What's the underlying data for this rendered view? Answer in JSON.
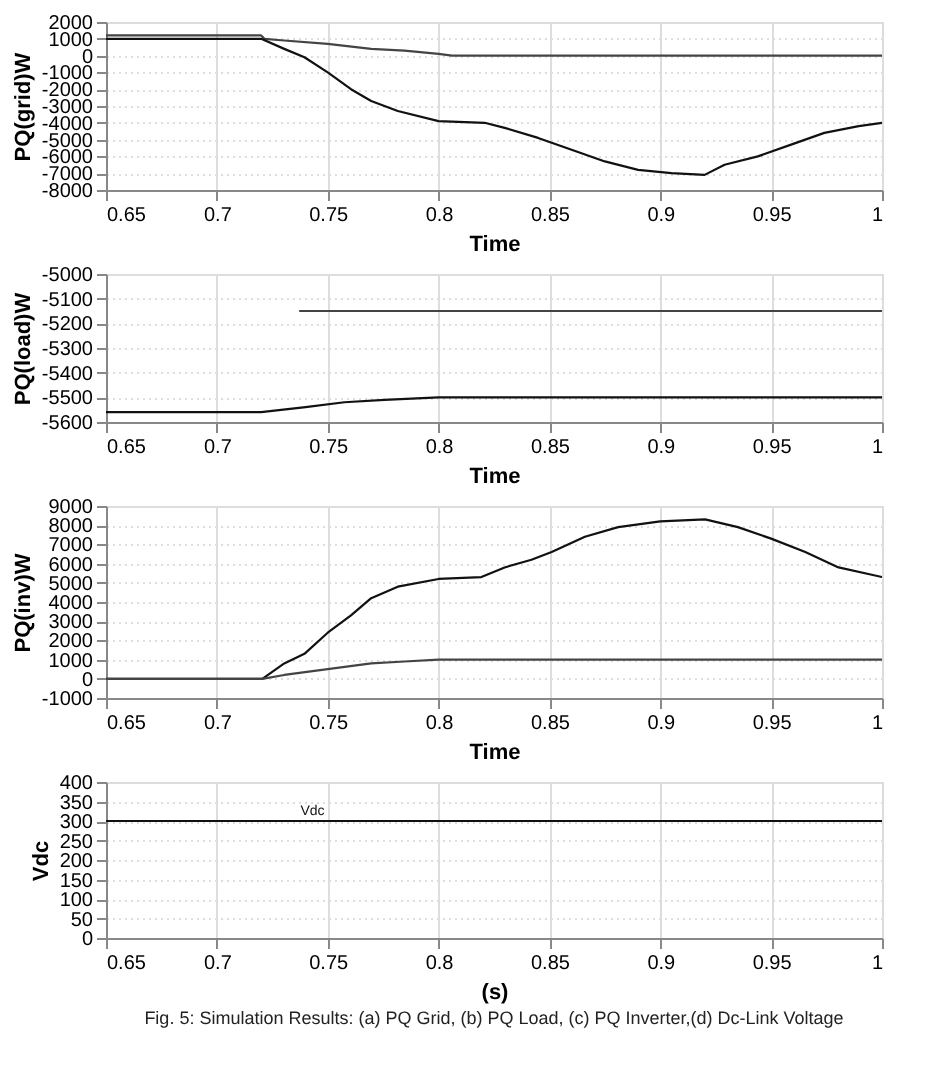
{
  "chart_data": [
    {
      "type": "line",
      "xlabel": "Time",
      "ylabel": "PQ(grid)W",
      "xlim": [
        0.65,
        1
      ],
      "ylim": [
        -8000,
        2000
      ],
      "xticks": [
        0.65,
        0.7,
        0.75,
        0.8,
        0.85,
        0.9,
        0.95,
        1
      ],
      "yticks": [
        -8000,
        -7000,
        -6000,
        -5000,
        -4000,
        -3000,
        -2000,
        -1000,
        0,
        1000,
        2000
      ],
      "grid": true,
      "line_style": "solid",
      "series": [
        {
          "color": "#444444",
          "x": [
            0.65,
            0.72,
            0.7215,
            0.7304,
            0.75,
            0.7696,
            0.7846,
            0.8,
            0.806,
            1
          ],
          "values": [
            1200,
            1200,
            1000,
            900,
            700,
            400,
            300,
            100,
            0,
            0
          ]
        },
        {
          "color": "#111111",
          "x": [
            0.65,
            0.72,
            0.7304,
            0.7395,
            0.75,
            0.7605,
            0.7696,
            0.7816,
            0.8,
            0.8208,
            0.8298,
            0.8449,
            0.86,
            0.875,
            0.89,
            0.905,
            0.92,
            0.929,
            0.944,
            0.959,
            0.974,
            0.9895,
            1
          ],
          "values": [
            1000,
            1000,
            400,
            -100,
            -1000,
            -2000,
            -2700,
            -3300,
            -3900,
            -4000,
            -4300,
            -4900,
            -5600,
            -6300,
            -6800,
            -7000,
            -7100,
            -6500,
            -6000,
            -5300,
            -4600,
            -4200,
            -4000
          ]
        }
      ]
    },
    {
      "type": "line",
      "xlabel": "Time",
      "ylabel": "PQ(load)W",
      "xlim": [
        0.65,
        1
      ],
      "ylim": [
        -5600,
        -5000
      ],
      "xticks": [
        0.65,
        0.7,
        0.75,
        0.8,
        0.85,
        0.9,
        0.95,
        1
      ],
      "yticks": [
        -5600,
        -5500,
        -5400,
        -5300,
        -5200,
        -5100,
        -5000
      ],
      "grid": true,
      "line_style": "solid",
      "series": [
        {
          "color": "#444444",
          "x": [
            0.7375,
            1
          ],
          "values": [
            -5150,
            -5150
          ]
        },
        {
          "color": "#111111",
          "x": [
            0.65,
            0.72,
            0.74,
            0.7575,
            0.7756,
            0.8,
            1
          ],
          "values": [
            -5560,
            -5560,
            -5540,
            -5520,
            -5510,
            -5500,
            -5500
          ]
        }
      ]
    },
    {
      "type": "line",
      "xlabel": "Time",
      "ylabel": "PQ(inv)W",
      "xlim": [
        0.65,
        1
      ],
      "ylim": [
        -1000,
        9000
      ],
      "xticks": [
        0.65,
        0.7,
        0.75,
        0.8,
        0.85,
        0.9,
        0.95,
        1
      ],
      "yticks": [
        -1000,
        0,
        1000,
        2000,
        3000,
        4000,
        5000,
        6000,
        7000,
        8000,
        9000
      ],
      "grid": true,
      "line_style": "solid",
      "series": [
        {
          "color": "#111111",
          "x": [
            0.65,
            0.7205,
            0.7304,
            0.7395,
            0.75,
            0.7605,
            0.7696,
            0.7816,
            0.8,
            0.8193,
            0.8298,
            0.8419,
            0.851,
            0.866,
            0.881,
            0.9,
            0.9202,
            0.935,
            0.95,
            0.9654,
            0.9804,
            1
          ],
          "values": [
            0,
            0,
            800,
            1300,
            2400,
            3300,
            4200,
            4800,
            5200,
            5300,
            5800,
            6200,
            6600,
            7400,
            7900,
            8200,
            8300,
            7900,
            7300,
            6600,
            5800,
            5300
          ]
        },
        {
          "color": "#444444",
          "x": [
            0.65,
            0.7205,
            0.7304,
            0.75,
            0.7696,
            0.7846,
            0.8,
            0.815,
            1
          ],
          "values": [
            0,
            0,
            200,
            500,
            800,
            900,
            1000,
            1000,
            1000
          ]
        }
      ]
    },
    {
      "type": "line",
      "xlabel": "(s)",
      "ylabel": "Vdc",
      "xlim": [
        0.65,
        1
      ],
      "ylim": [
        0,
        400
      ],
      "xticks": [
        0.65,
        0.7,
        0.75,
        0.8,
        0.85,
        0.9,
        0.95,
        1
      ],
      "yticks": [
        0,
        50,
        100,
        150,
        200,
        250,
        300,
        350,
        400
      ],
      "grid": true,
      "line_style": "solid",
      "series": [
        {
          "color": "#111111",
          "x": [
            0.65,
            1
          ],
          "values": [
            300,
            300
          ]
        }
      ],
      "annotations": [
        {
          "text": "Vdc",
          "x": 0.735,
          "y": 300
        },
        "Fig. 5: Simulation Results: (a) PQ Grid, (b) PQ Load, (c) PQ Inverter,(d) Dc-Link Voltage"
      ]
    }
  ]
}
